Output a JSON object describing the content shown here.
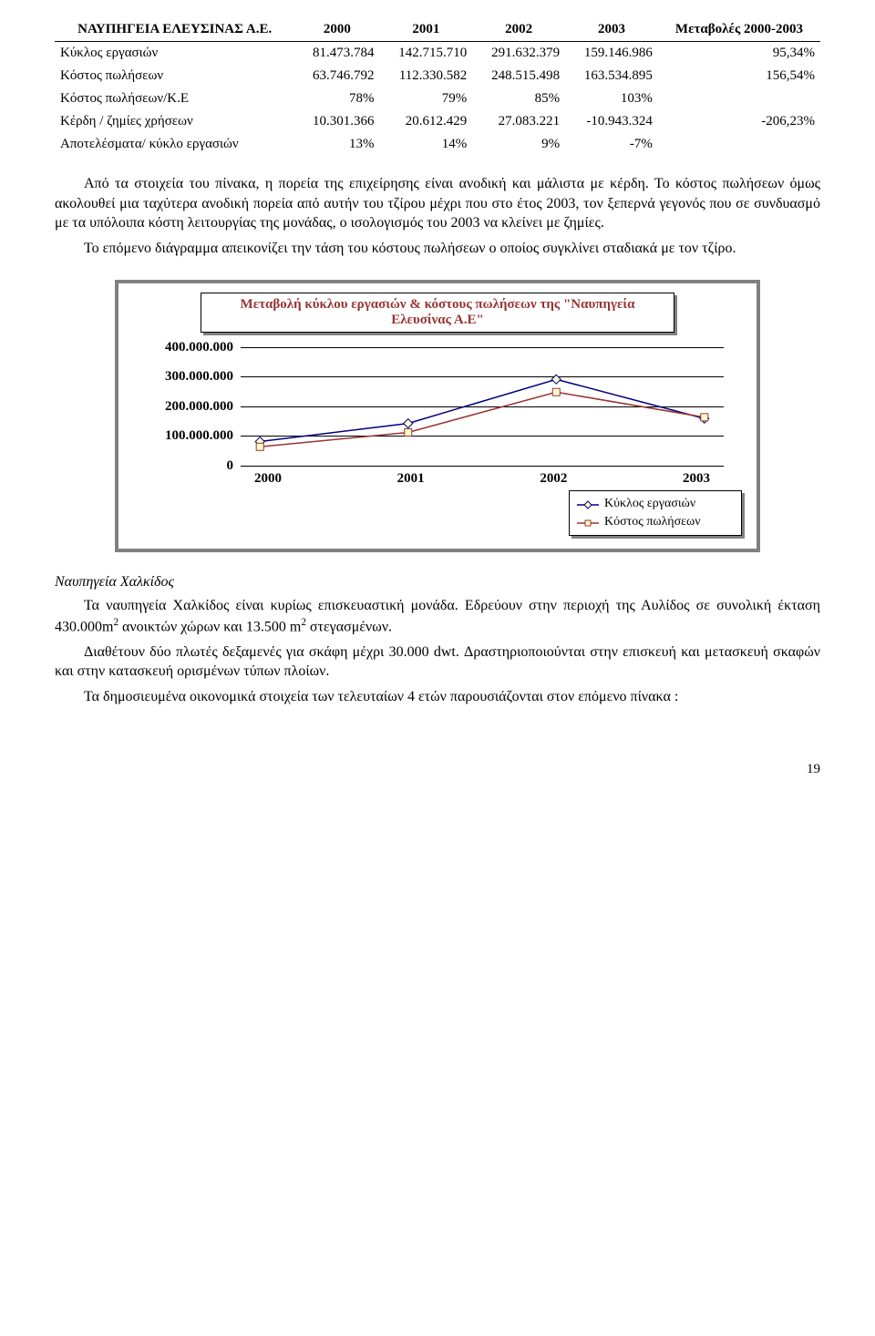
{
  "table": {
    "header_label": "ΝΑΥΠΗΓΕΙΑ ΕΛΕΥΣΙΝΑΣ Α.Ε.",
    "year_cols": [
      "2000",
      "2001",
      "2002",
      "2003"
    ],
    "change_col": "Μεταβολές 2000-2003",
    "rows": [
      {
        "label": "Κύκλος εργασιών",
        "cells": [
          "81.473.784",
          "142.715.710",
          "291.632.379",
          "159.146.986",
          "95,34%"
        ]
      },
      {
        "label": "Κόστος πωλήσεων",
        "cells": [
          "63.746.792",
          "112.330.582",
          "248.515.498",
          "163.534.895",
          "156,54%"
        ]
      },
      {
        "label": "Κόστος πωλήσεων/Κ.Ε",
        "cells": [
          "78%",
          "79%",
          "85%",
          "103%",
          ""
        ]
      },
      {
        "label": "Κέρδη / ζημίες χρήσεων",
        "cells": [
          "10.301.366",
          "20.612.429",
          "27.083.221",
          "-10.943.324",
          "-206,23%"
        ]
      },
      {
        "label": "Αποτελέσματα/ κύκλο εργασιών",
        "cells": [
          "13%",
          "14%",
          "9%",
          "-7%",
          ""
        ]
      }
    ]
  },
  "paragraphs": {
    "p1": "Από τα στοιχεία του πίνακα, η πορεία της επιχείρησης είναι ανοδική και μάλιστα με κέρδη. Το κόστος πωλήσεων όμως ακολουθεί μια ταχύτερα ανοδική πορεία από αυτήν του τζίρου μέχρι που στο έτος 2003, τον ξεπερνά γεγονός που σε συνδυασμό με τα υπόλοιπα κόστη λειτουργίας της μονάδας, ο ισολογισμός του 2003 να κλείνει με ζημίες.",
    "p2": "Το επόμενο διάγραμμα απεικονίζει την τάση του κόστους πωλήσεων ο οποίος συγκλίνει σταδιακά με τον τζίρο.",
    "subhead": "Ναυπηγεία Χαλκίδος",
    "p3a": "Τα ναυπηγεία Χαλκίδος είναι κυρίως επισκευαστική μονάδα. Εδρεύουν στην περιοχή της Αυλίδος σε συνολική έκταση 430.000m",
    "p3b": " ανοικτών χώρων και 13.500 m",
    "p3c": " στεγασμένων.",
    "p4": "Διαθέτουν δύο πλωτές δεξαμενές για σκάφη μέχρι 30.000 dwt. Δραστηριοποιούνται στην επισκευή και μετασκευή σκαφών και στην κατασκευή ορισμένων τύπων πλοίων.",
    "p5": "Τα δημοσιευμένα οικονομικά στοιχεία των τελευταίων 4 ετών παρουσιάζονται στον επόμενο πίνακα :"
  },
  "chart": {
    "title": "Μεταβολή κύκλου εργασιών & κόστους πωλήσεων της \"Ναυπηγεία Ελευσίνας Α.Ε\"",
    "type": "line",
    "y_ticks": [
      "400.000.000",
      "300.000.000",
      "200.000.000",
      "100.000.000",
      "0"
    ],
    "x_labels": [
      "2000",
      "2001",
      "2002",
      "2003"
    ],
    "y_max": 400000000,
    "series": [
      {
        "name": "Κύκλος εργασιών",
        "color": "#000080",
        "marker": "diamond",
        "values": [
          81473784,
          142715710,
          291632379,
          159146986
        ]
      },
      {
        "name": "Κόστος πωλήσεων",
        "color": "#993333",
        "marker": "square",
        "values": [
          63746792,
          112330582,
          248515498,
          163534895
        ]
      }
    ],
    "legend": [
      "Κύκλος εργασιών",
      "Κόστος πωλήσεων"
    ],
    "colors": {
      "title_text": "#993333",
      "shadow": "#808080",
      "marker_fill": "#ffffcc",
      "background": "#ffffff",
      "grid": "#000000"
    },
    "title_fontsize": 15,
    "axis_font_weight": "bold",
    "line_width": 1.5,
    "marker_size": 8
  },
  "page_number": "19"
}
